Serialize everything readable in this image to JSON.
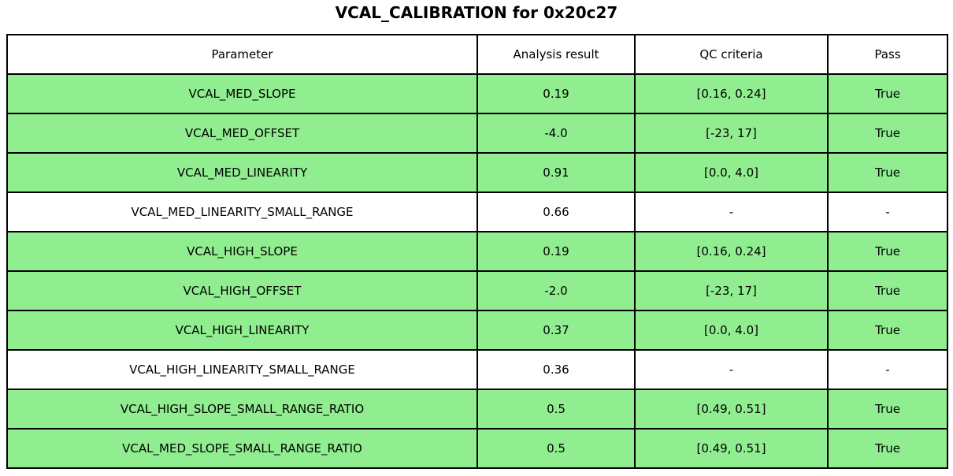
{
  "title": "VCAL_CALIBRATION for 0x20c27",
  "colors": {
    "pass_row_bg": "#90EE90",
    "neutral_row_bg": "#FFFFFF",
    "border": "#000000",
    "text": "#000000"
  },
  "table": {
    "columns": [
      "Parameter",
      "Analysis result",
      "QC criteria",
      "Pass"
    ],
    "rows": [
      {
        "parameter": "VCAL_MED_SLOPE",
        "analysis_result": "0.19",
        "qc_criteria": "[0.16, 0.24]",
        "pass": "True",
        "highlight": true
      },
      {
        "parameter": "VCAL_MED_OFFSET",
        "analysis_result": "-4.0",
        "qc_criteria": "[-23, 17]",
        "pass": "True",
        "highlight": true
      },
      {
        "parameter": "VCAL_MED_LINEARITY",
        "analysis_result": "0.91",
        "qc_criteria": "[0.0, 4.0]",
        "pass": "True",
        "highlight": true
      },
      {
        "parameter": "VCAL_MED_LINEARITY_SMALL_RANGE",
        "analysis_result": "0.66",
        "qc_criteria": "-",
        "pass": "-",
        "highlight": false
      },
      {
        "parameter": "VCAL_HIGH_SLOPE",
        "analysis_result": "0.19",
        "qc_criteria": "[0.16, 0.24]",
        "pass": "True",
        "highlight": true
      },
      {
        "parameter": "VCAL_HIGH_OFFSET",
        "analysis_result": "-2.0",
        "qc_criteria": "[-23, 17]",
        "pass": "True",
        "highlight": true
      },
      {
        "parameter": "VCAL_HIGH_LINEARITY",
        "analysis_result": "0.37",
        "qc_criteria": "[0.0, 4.0]",
        "pass": "True",
        "highlight": true
      },
      {
        "parameter": "VCAL_HIGH_LINEARITY_SMALL_RANGE",
        "analysis_result": "0.36",
        "qc_criteria": "-",
        "pass": "-",
        "highlight": false
      },
      {
        "parameter": "VCAL_HIGH_SLOPE_SMALL_RANGE_RATIO",
        "analysis_result": "0.5",
        "qc_criteria": "[0.49, 0.51]",
        "pass": "True",
        "highlight": true
      },
      {
        "parameter": "VCAL_MED_SLOPE_SMALL_RANGE_RATIO",
        "analysis_result": "0.5",
        "qc_criteria": "[0.49, 0.51]",
        "pass": "True",
        "highlight": true
      }
    ]
  },
  "chart_data": {
    "type": "table",
    "title": "VCAL_CALIBRATION for 0x20c27",
    "columns": [
      "Parameter",
      "Analysis result",
      "QC criteria",
      "Pass"
    ],
    "rows": [
      [
        "VCAL_MED_SLOPE",
        "0.19",
        "[0.16, 0.24]",
        "True"
      ],
      [
        "VCAL_MED_OFFSET",
        "-4.0",
        "[-23, 17]",
        "True"
      ],
      [
        "VCAL_MED_LINEARITY",
        "0.91",
        "[0.0, 4.0]",
        "True"
      ],
      [
        "VCAL_MED_LINEARITY_SMALL_RANGE",
        "0.66",
        "-",
        "-"
      ],
      [
        "VCAL_HIGH_SLOPE",
        "0.19",
        "[0.16, 0.24]",
        "True"
      ],
      [
        "VCAL_HIGH_OFFSET",
        "-2.0",
        "[-23, 17]",
        "True"
      ],
      [
        "VCAL_HIGH_LINEARITY",
        "0.37",
        "[0.0, 4.0]",
        "True"
      ],
      [
        "VCAL_HIGH_LINEARITY_SMALL_RANGE",
        "0.36",
        "-",
        "-"
      ],
      [
        "VCAL_HIGH_SLOPE_SMALL_RANGE_RATIO",
        "0.5",
        "[0.49, 0.51]",
        "True"
      ],
      [
        "VCAL_MED_SLOPE_SMALL_RANGE_RATIO",
        "0.5",
        "[0.49, 0.51]",
        "True"
      ]
    ],
    "row_highlighted": [
      true,
      true,
      true,
      false,
      true,
      true,
      true,
      false,
      true,
      true
    ],
    "legend_position": "none",
    "grid": "full-cell-borders"
  }
}
